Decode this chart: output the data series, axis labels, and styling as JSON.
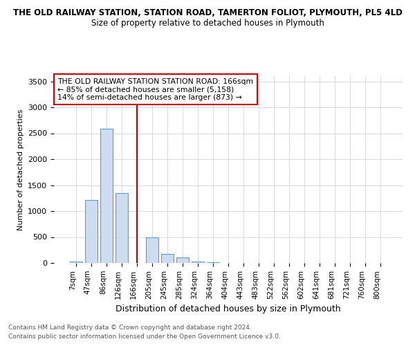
{
  "title_line1": "THE OLD RAILWAY STATION, STATION ROAD, TAMERTON FOLIOT, PLYMOUTH, PL5 4LD",
  "title_line2": "Size of property relative to detached houses in Plymouth",
  "xlabel": "Distribution of detached houses by size in Plymouth",
  "ylabel": "Number of detached properties",
  "footnote1": "Contains HM Land Registry data © Crown copyright and database right 2024.",
  "footnote2": "Contains public sector information licensed under the Open Government Licence v3.0.",
  "categories": [
    "7sqm",
    "47sqm",
    "86sqm",
    "126sqm",
    "166sqm",
    "205sqm",
    "245sqm",
    "285sqm",
    "324sqm",
    "364sqm",
    "404sqm",
    "443sqm",
    "483sqm",
    "522sqm",
    "562sqm",
    "602sqm",
    "641sqm",
    "681sqm",
    "721sqm",
    "760sqm",
    "800sqm"
  ],
  "values": [
    30,
    1220,
    2590,
    1350,
    0,
    490,
    170,
    110,
    30,
    10,
    5,
    3,
    2,
    2,
    1,
    1,
    1,
    0,
    0,
    0,
    0
  ],
  "highlight_index": 4,
  "highlight_color": "#cc0000",
  "bar_color": "#cddcee",
  "bar_edge_color": "#5b9bd5",
  "ylim": [
    0,
    3600
  ],
  "yticks": [
    0,
    500,
    1000,
    1500,
    2000,
    2500,
    3000,
    3500
  ],
  "annotation_title": "THE OLD RAILWAY STATION STATION ROAD: 166sqm",
  "annotation_line1": "← 85% of detached houses are smaller (5,158)",
  "annotation_line2": "14% of semi-detached houses are larger (873) →",
  "grid_color": "#d9d9d9",
  "background_color": "#ffffff"
}
